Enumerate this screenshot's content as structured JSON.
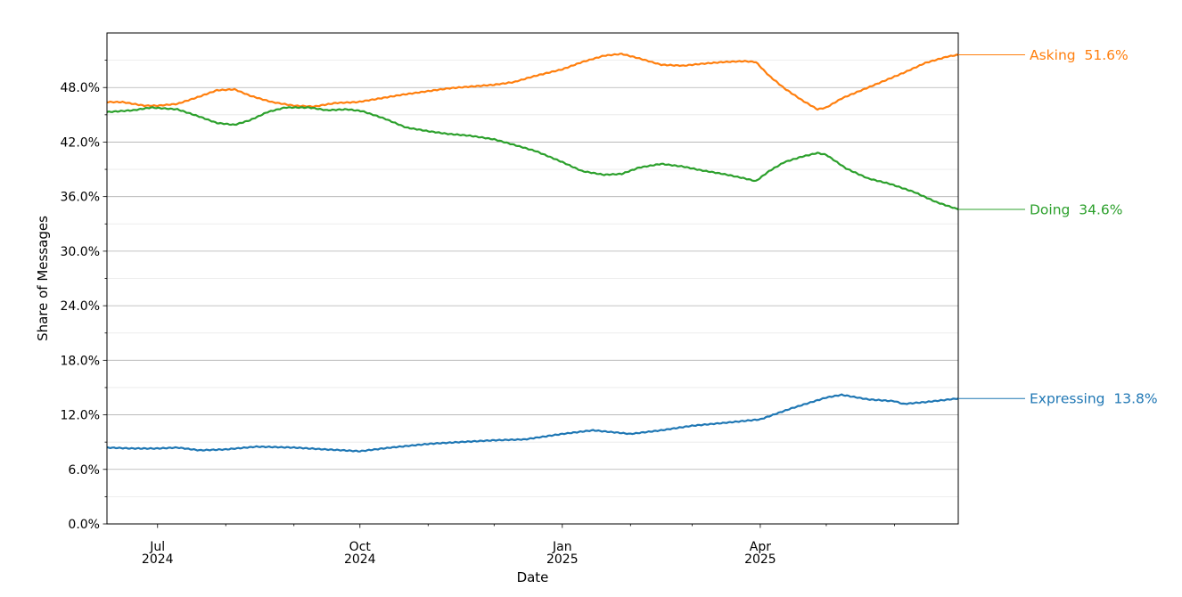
{
  "chart_data": {
    "type": "line",
    "title": "",
    "xlabel": "Date",
    "ylabel": "Share of Messages",
    "xlim": [
      "2024-06-08",
      "2025-06-30"
    ],
    "ylim": [
      0,
      54
    ],
    "y_ticks": [
      0,
      6,
      12,
      18,
      24,
      30,
      36,
      42,
      48
    ],
    "y_tick_labels": [
      "0.0%",
      "6.0%",
      "12.0%",
      "18.0%",
      "24.0%",
      "30.0%",
      "36.0%",
      "42.0%",
      "48.0%"
    ],
    "x_major_ticks": [
      {
        "date": "2024-07-01",
        "line1": "Jul",
        "line2": "2024"
      },
      {
        "date": "2024-10-01",
        "line1": "Oct",
        "line2": "2024"
      },
      {
        "date": "2025-01-01",
        "line1": "Jan",
        "line2": "2025"
      },
      {
        "date": "2025-04-01",
        "line1": "Apr",
        "line2": "2025"
      }
    ],
    "x_minor_ticks": [
      "2024-08-01",
      "2024-09-01",
      "2024-11-01",
      "2024-12-01",
      "2025-02-01",
      "2025-03-01",
      "2025-05-01",
      "2025-06-01"
    ],
    "grid": {
      "major_y": true,
      "minor_y": true
    },
    "legend": "direct labels at right end of lines",
    "series": [
      {
        "name": "Asking",
        "end_label": "Asking  51.6%",
        "color": "#ff7f0e",
        "points": [
          [
            "2024-06-08",
            46.4
          ],
          [
            "2024-06-15",
            46.4
          ],
          [
            "2024-06-25",
            46.0
          ],
          [
            "2024-07-01",
            46.0
          ],
          [
            "2024-07-10",
            46.2
          ],
          [
            "2024-07-20",
            47.0
          ],
          [
            "2024-07-28",
            47.7
          ],
          [
            "2024-08-05",
            47.8
          ],
          [
            "2024-08-12",
            47.1
          ],
          [
            "2024-08-22",
            46.4
          ],
          [
            "2024-09-01",
            46.0
          ],
          [
            "2024-09-10",
            45.9
          ],
          [
            "2024-09-20",
            46.3
          ],
          [
            "2024-09-30",
            46.4
          ],
          [
            "2024-10-10",
            46.8
          ],
          [
            "2024-10-20",
            47.2
          ],
          [
            "2024-11-01",
            47.6
          ],
          [
            "2024-11-10",
            47.9
          ],
          [
            "2024-11-20",
            48.1
          ],
          [
            "2024-12-01",
            48.3
          ],
          [
            "2024-12-10",
            48.6
          ],
          [
            "2024-12-20",
            49.3
          ],
          [
            "2025-01-01",
            50.0
          ],
          [
            "2025-01-10",
            50.8
          ],
          [
            "2025-01-20",
            51.5
          ],
          [
            "2025-01-28",
            51.7
          ],
          [
            "2025-02-05",
            51.2
          ],
          [
            "2025-02-15",
            50.5
          ],
          [
            "2025-02-25",
            50.4
          ],
          [
            "2025-03-05",
            50.6
          ],
          [
            "2025-03-15",
            50.8
          ],
          [
            "2025-03-25",
            50.9
          ],
          [
            "2025-03-30",
            50.8
          ],
          [
            "2025-04-05",
            49.3
          ],
          [
            "2025-04-12",
            47.9
          ],
          [
            "2025-04-20",
            46.6
          ],
          [
            "2025-04-27",
            45.6
          ],
          [
            "2025-05-01",
            45.8
          ],
          [
            "2025-05-08",
            46.8
          ],
          [
            "2025-05-15",
            47.5
          ],
          [
            "2025-05-25",
            48.5
          ],
          [
            "2025-06-05",
            49.6
          ],
          [
            "2025-06-15",
            50.7
          ],
          [
            "2025-06-25",
            51.4
          ],
          [
            "2025-06-30",
            51.6
          ]
        ]
      },
      {
        "name": "Doing",
        "end_label": "Doing  34.6%",
        "color": "#2ca02c",
        "points": [
          [
            "2024-06-08",
            45.3
          ],
          [
            "2024-06-20",
            45.5
          ],
          [
            "2024-06-28",
            45.8
          ],
          [
            "2024-07-10",
            45.6
          ],
          [
            "2024-07-20",
            44.8
          ],
          [
            "2024-07-28",
            44.1
          ],
          [
            "2024-08-05",
            43.9
          ],
          [
            "2024-08-12",
            44.4
          ],
          [
            "2024-08-20",
            45.3
          ],
          [
            "2024-08-28",
            45.8
          ],
          [
            "2024-09-08",
            45.8
          ],
          [
            "2024-09-16",
            45.5
          ],
          [
            "2024-09-25",
            45.6
          ],
          [
            "2024-10-02",
            45.4
          ],
          [
            "2024-10-12",
            44.6
          ],
          [
            "2024-10-22",
            43.6
          ],
          [
            "2024-11-01",
            43.2
          ],
          [
            "2024-11-10",
            42.9
          ],
          [
            "2024-11-20",
            42.7
          ],
          [
            "2024-12-01",
            42.3
          ],
          [
            "2024-12-10",
            41.7
          ],
          [
            "2024-12-20",
            41.0
          ],
          [
            "2025-01-01",
            39.8
          ],
          [
            "2025-01-10",
            38.8
          ],
          [
            "2025-01-20",
            38.4
          ],
          [
            "2025-01-28",
            38.5
          ],
          [
            "2025-02-05",
            39.2
          ],
          [
            "2025-02-15",
            39.6
          ],
          [
            "2025-02-25",
            39.3
          ],
          [
            "2025-03-05",
            38.9
          ],
          [
            "2025-03-15",
            38.5
          ],
          [
            "2025-03-25",
            38.0
          ],
          [
            "2025-03-30",
            37.7
          ],
          [
            "2025-04-05",
            38.8
          ],
          [
            "2025-04-12",
            39.8
          ],
          [
            "2025-04-20",
            40.4
          ],
          [
            "2025-04-27",
            40.8
          ],
          [
            "2025-05-01",
            40.6
          ],
          [
            "2025-05-10",
            39.1
          ],
          [
            "2025-05-20",
            38.0
          ],
          [
            "2025-05-30",
            37.4
          ],
          [
            "2025-06-10",
            36.5
          ],
          [
            "2025-06-20",
            35.4
          ],
          [
            "2025-06-30",
            34.6
          ]
        ]
      },
      {
        "name": "Expressing",
        "end_label": "Expressing  13.8%",
        "color": "#1f77b4",
        "points": [
          [
            "2024-06-08",
            8.4
          ],
          [
            "2024-06-20",
            8.3
          ],
          [
            "2024-07-01",
            8.3
          ],
          [
            "2024-07-10",
            8.4
          ],
          [
            "2024-07-20",
            8.1
          ],
          [
            "2024-08-01",
            8.2
          ],
          [
            "2024-08-15",
            8.5
          ],
          [
            "2024-09-01",
            8.4
          ],
          [
            "2024-09-15",
            8.2
          ],
          [
            "2024-10-01",
            8.0
          ],
          [
            "2024-10-15",
            8.4
          ],
          [
            "2024-11-01",
            8.8
          ],
          [
            "2024-11-15",
            9.0
          ],
          [
            "2024-12-01",
            9.2
          ],
          [
            "2024-12-15",
            9.3
          ],
          [
            "2025-01-01",
            9.9
          ],
          [
            "2025-01-15",
            10.3
          ],
          [
            "2025-02-01",
            9.9
          ],
          [
            "2025-02-15",
            10.3
          ],
          [
            "2025-03-01",
            10.8
          ],
          [
            "2025-03-15",
            11.1
          ],
          [
            "2025-04-01",
            11.5
          ],
          [
            "2025-04-15",
            12.7
          ],
          [
            "2025-05-01",
            13.9
          ],
          [
            "2025-05-08",
            14.2
          ],
          [
            "2025-05-20",
            13.7
          ],
          [
            "2025-06-01",
            13.5
          ],
          [
            "2025-06-05",
            13.2
          ],
          [
            "2025-06-15",
            13.4
          ],
          [
            "2025-06-30",
            13.8
          ]
        ]
      }
    ]
  }
}
